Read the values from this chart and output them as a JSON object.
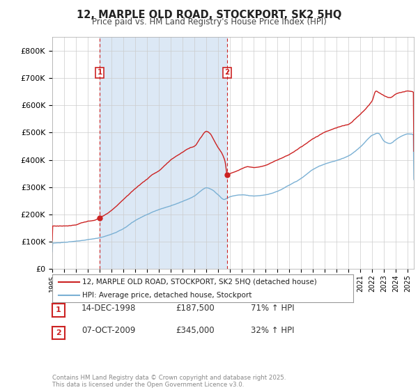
{
  "title": "12, MARPLE OLD ROAD, STOCKPORT, SK2 5HQ",
  "subtitle": "Price paid vs. HM Land Registry's House Price Index (HPI)",
  "legend_line1": "12, MARPLE OLD ROAD, STOCKPORT, SK2 5HQ (detached house)",
  "legend_line2": "HPI: Average price, detached house, Stockport",
  "sale1_date": "14-DEC-1998",
  "sale1_price": "£187,500",
  "sale1_hpi": "71% ↑ HPI",
  "sale2_date": "07-OCT-2009",
  "sale2_price": "£345,000",
  "sale2_hpi": "32% ↑ HPI",
  "footer": "Contains HM Land Registry data © Crown copyright and database right 2025.\nThis data is licensed under the Open Government Licence v3.0.",
  "red_color": "#cc2222",
  "blue_color": "#7ab0d4",
  "shade_color": "#dce8f5",
  "grid_color": "#cccccc",
  "bg_color": "#ffffff",
  "sale1_year": 1999.0,
  "sale2_year": 2009.75,
  "ylim": [
    0,
    850000
  ],
  "yticks": [
    0,
    100000,
    200000,
    300000,
    400000,
    500000,
    600000,
    700000,
    800000
  ],
  "xlim_start": 1995,
  "xlim_end": 2025.5
}
